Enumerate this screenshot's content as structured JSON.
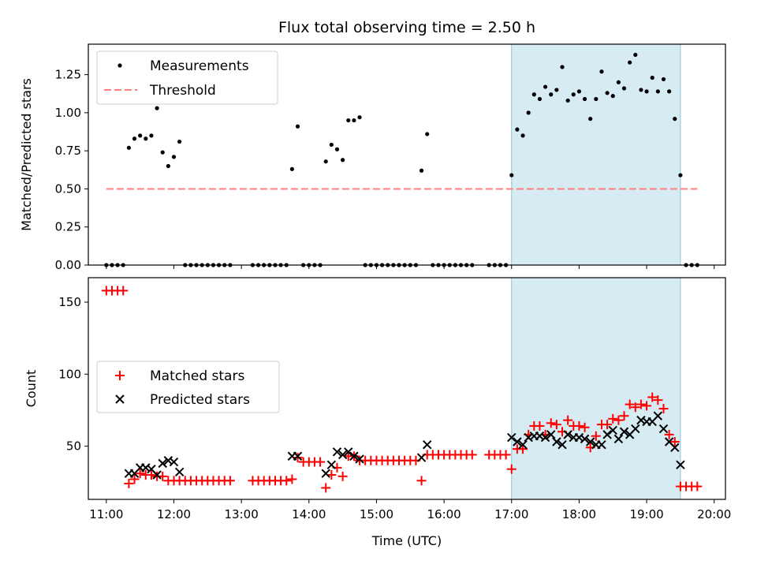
{
  "chart_data": {
    "title": "Flux total observing time = 2.50 h",
    "xlabel": "Time (UTC)",
    "x_ticks": [
      "11:00",
      "12:00",
      "13:00",
      "14:00",
      "15:00",
      "16:00",
      "17:00",
      "18:00",
      "19:00",
      "20:00"
    ],
    "xlim": [
      "10:44",
      "20:10"
    ],
    "highlight": {
      "start": "17:00",
      "end": "19:30",
      "color": "#add8e6"
    },
    "top": {
      "type": "scatter",
      "ylabel": "Matched/Predicted stars",
      "ylim": [
        0,
        1.45
      ],
      "y_ticks": [
        "0.00",
        "0.25",
        "0.50",
        "0.75",
        "1.00",
        "1.25"
      ],
      "legend_position": "top-left",
      "series": [
        {
          "name": "Measurements",
          "marker": "dot",
          "color": "#000000",
          "points": [
            [
              "11:00",
              0
            ],
            [
              "11:05",
              0
            ],
            [
              "11:10",
              0
            ],
            [
              "11:15",
              0
            ],
            [
              "11:20",
              0.77
            ],
            [
              "11:25",
              0.83
            ],
            [
              "11:30",
              0.85
            ],
            [
              "11:35",
              0.83
            ],
            [
              "11:40",
              0.85
            ],
            [
              "11:45",
              1.03
            ],
            [
              "11:50",
              0.74
            ],
            [
              "11:55",
              0.65
            ],
            [
              "12:00",
              0.71
            ],
            [
              "12:05",
              0.81
            ],
            [
              "12:10",
              0
            ],
            [
              "12:15",
              0
            ],
            [
              "12:20",
              0
            ],
            [
              "12:25",
              0
            ],
            [
              "12:30",
              0
            ],
            [
              "12:35",
              0
            ],
            [
              "12:40",
              0
            ],
            [
              "12:45",
              0
            ],
            [
              "12:50",
              0
            ],
            [
              "13:10",
              0
            ],
            [
              "13:15",
              0
            ],
            [
              "13:20",
              0
            ],
            [
              "13:25",
              0
            ],
            [
              "13:30",
              0
            ],
            [
              "13:35",
              0
            ],
            [
              "13:40",
              0
            ],
            [
              "13:45",
              0.63
            ],
            [
              "13:50",
              0.91
            ],
            [
              "13:55",
              0
            ],
            [
              "14:00",
              0
            ],
            [
              "14:05",
              0
            ],
            [
              "14:10",
              0
            ],
            [
              "14:15",
              0.68
            ],
            [
              "14:20",
              0.79
            ],
            [
              "14:25",
              0.76
            ],
            [
              "14:30",
              0.69
            ],
            [
              "14:35",
              0.95
            ],
            [
              "14:40",
              0.95
            ],
            [
              "14:45",
              0.97
            ],
            [
              "14:50",
              0
            ],
            [
              "14:55",
              0
            ],
            [
              "15:00",
              0
            ],
            [
              "15:05",
              0
            ],
            [
              "15:10",
              0
            ],
            [
              "15:15",
              0
            ],
            [
              "15:20",
              0
            ],
            [
              "15:25",
              0
            ],
            [
              "15:30",
              0
            ],
            [
              "15:35",
              0
            ],
            [
              "15:40",
              0.62
            ],
            [
              "15:45",
              0.86
            ],
            [
              "15:50",
              0
            ],
            [
              "15:55",
              0
            ],
            [
              "16:00",
              0
            ],
            [
              "16:05",
              0
            ],
            [
              "16:10",
              0
            ],
            [
              "16:15",
              0
            ],
            [
              "16:20",
              0
            ],
            [
              "16:25",
              0
            ],
            [
              "16:40",
              0
            ],
            [
              "16:45",
              0
            ],
            [
              "16:50",
              0
            ],
            [
              "16:55",
              0
            ],
            [
              "17:00",
              0.59
            ],
            [
              "17:05",
              0.89
            ],
            [
              "17:10",
              0.85
            ],
            [
              "17:15",
              1.0
            ],
            [
              "17:20",
              1.12
            ],
            [
              "17:25",
              1.09
            ],
            [
              "17:30",
              1.17
            ],
            [
              "17:35",
              1.12
            ],
            [
              "17:40",
              1.15
            ],
            [
              "17:45",
              1.3
            ],
            [
              "17:50",
              1.08
            ],
            [
              "17:55",
              1.12
            ],
            [
              "18:00",
              1.14
            ],
            [
              "18:05",
              1.09
            ],
            [
              "18:10",
              0.96
            ],
            [
              "18:15",
              1.09
            ],
            [
              "18:20",
              1.27
            ],
            [
              "18:25",
              1.13
            ],
            [
              "18:30",
              1.11
            ],
            [
              "18:35",
              1.2
            ],
            [
              "18:40",
              1.16
            ],
            [
              "18:45",
              1.33
            ],
            [
              "18:50",
              1.38
            ],
            [
              "18:55",
              1.15
            ],
            [
              "19:00",
              1.14
            ],
            [
              "19:05",
              1.23
            ],
            [
              "19:10",
              1.14
            ],
            [
              "19:15",
              1.22
            ],
            [
              "19:20",
              1.14
            ],
            [
              "19:25",
              0.96
            ],
            [
              "19:30",
              0.59
            ],
            [
              "19:35",
              0
            ],
            [
              "19:40",
              0
            ],
            [
              "19:45",
              0
            ]
          ]
        },
        {
          "name": "Threshold",
          "marker": "dashed-line",
          "color": "#ff7f7f",
          "points": [
            [
              "11:00",
              0.5
            ],
            [
              "19:45",
              0.5
            ]
          ]
        }
      ]
    },
    "bottom": {
      "type": "scatter",
      "ylabel": "Count",
      "ylim": [
        13,
        167
      ],
      "y_ticks": [
        "50",
        "100",
        "150"
      ],
      "legend_position": "center-left",
      "series": [
        {
          "name": "Matched stars",
          "marker": "plus",
          "color": "#ff0000",
          "points": [
            [
              "11:00",
              158
            ],
            [
              "11:05",
              158
            ],
            [
              "11:10",
              158
            ],
            [
              "11:15",
              158
            ],
            [
              "11:20",
              24
            ],
            [
              "11:25",
              27
            ],
            [
              "11:30",
              31
            ],
            [
              "11:35",
              30
            ],
            [
              "11:40",
              30
            ],
            [
              "11:45",
              29
            ],
            [
              "11:50",
              29
            ],
            [
              "11:55",
              26
            ],
            [
              "12:00",
              26
            ],
            [
              "12:05",
              26
            ],
            [
              "12:10",
              26
            ],
            [
              "12:15",
              26
            ],
            [
              "12:20",
              26
            ],
            [
              "12:25",
              26
            ],
            [
              "12:30",
              26
            ],
            [
              "12:35",
              26
            ],
            [
              "12:40",
              26
            ],
            [
              "12:45",
              26
            ],
            [
              "12:50",
              26
            ],
            [
              "13:10",
              26
            ],
            [
              "13:15",
              26
            ],
            [
              "13:20",
              26
            ],
            [
              "13:25",
              26
            ],
            [
              "13:30",
              26
            ],
            [
              "13:35",
              26
            ],
            [
              "13:40",
              26
            ],
            [
              "13:45",
              27
            ],
            [
              "13:50",
              42
            ],
            [
              "13:55",
              39
            ],
            [
              "14:00",
              39
            ],
            [
              "14:05",
              39
            ],
            [
              "14:10",
              39
            ],
            [
              "14:15",
              21
            ],
            [
              "14:20",
              30
            ],
            [
              "14:25",
              35
            ],
            [
              "14:30",
              29
            ],
            [
              "14:35",
              43
            ],
            [
              "14:40",
              43
            ],
            [
              "14:45",
              40
            ],
            [
              "14:50",
              40
            ],
            [
              "14:55",
              40
            ],
            [
              "15:00",
              40
            ],
            [
              "15:05",
              40
            ],
            [
              "15:10",
              40
            ],
            [
              "15:15",
              40
            ],
            [
              "15:20",
              40
            ],
            [
              "15:25",
              40
            ],
            [
              "15:30",
              40
            ],
            [
              "15:35",
              40
            ],
            [
              "15:40",
              26
            ],
            [
              "15:45",
              44
            ],
            [
              "15:50",
              44
            ],
            [
              "15:55",
              44
            ],
            [
              "16:00",
              44
            ],
            [
              "16:05",
              44
            ],
            [
              "16:10",
              44
            ],
            [
              "16:15",
              44
            ],
            [
              "16:20",
              44
            ],
            [
              "16:25",
              44
            ],
            [
              "16:40",
              44
            ],
            [
              "16:45",
              44
            ],
            [
              "16:50",
              44
            ],
            [
              "16:55",
              44
            ],
            [
              "17:00",
              34
            ],
            [
              "17:05",
              48
            ],
            [
              "17:10",
              48
            ],
            [
              "17:15",
              58
            ],
            [
              "17:20",
              64
            ],
            [
              "17:25",
              64
            ],
            [
              "17:30",
              58
            ],
            [
              "17:35",
              66
            ],
            [
              "17:40",
              65
            ],
            [
              "17:45",
              60
            ],
            [
              "17:50",
              68
            ],
            [
              "17:55",
              64
            ],
            [
              "18:00",
              64
            ],
            [
              "18:05",
              63
            ],
            [
              "18:10",
              49
            ],
            [
              "18:15",
              57
            ],
            [
              "18:20",
              65
            ],
            [
              "18:25",
              65
            ],
            [
              "18:30",
              69
            ],
            [
              "18:35",
              68
            ],
            [
              "18:40",
              71
            ],
            [
              "18:45",
              79
            ],
            [
              "18:50",
              77
            ],
            [
              "18:55",
              79
            ],
            [
              "19:00",
              78
            ],
            [
              "19:05",
              84
            ],
            [
              "19:10",
              82
            ],
            [
              "19:15",
              76
            ],
            [
              "19:20",
              58
            ],
            [
              "19:25",
              53
            ],
            [
              "19:30",
              22
            ],
            [
              "19:35",
              22
            ],
            [
              "19:40",
              22
            ],
            [
              "19:45",
              22
            ]
          ]
        },
        {
          "name": "Predicted stars",
          "marker": "x",
          "color": "#000000",
          "points": [
            [
              "11:20",
              31
            ],
            [
              "11:25",
              31
            ],
            [
              "11:30",
              35
            ],
            [
              "11:35",
              35
            ],
            [
              "11:40",
              34
            ],
            [
              "11:45",
              30
            ],
            [
              "11:50",
              38
            ],
            [
              "11:55",
              40
            ],
            [
              "12:00",
              39
            ],
            [
              "12:05",
              32
            ],
            [
              "13:45",
              43
            ],
            [
              "13:50",
              43
            ],
            [
              "14:15",
              31
            ],
            [
              "14:20",
              37
            ],
            [
              "14:25",
              46
            ],
            [
              "14:30",
              44
            ],
            [
              "14:35",
              46
            ],
            [
              "14:40",
              43
            ],
            [
              "14:45",
              41
            ],
            [
              "15:40",
              42
            ],
            [
              "15:45",
              51
            ],
            [
              "17:00",
              56
            ],
            [
              "17:05",
              53
            ],
            [
              "17:10",
              51
            ],
            [
              "17:15",
              56
            ],
            [
              "17:20",
              57
            ],
            [
              "17:25",
              57
            ],
            [
              "17:30",
              56
            ],
            [
              "17:35",
              58
            ],
            [
              "17:40",
              53
            ],
            [
              "17:45",
              51
            ],
            [
              "17:50",
              58
            ],
            [
              "17:55",
              56
            ],
            [
              "18:00",
              56
            ],
            [
              "18:05",
              55
            ],
            [
              "18:10",
              53
            ],
            [
              "18:15",
              51
            ],
            [
              "18:20",
              51
            ],
            [
              "18:25",
              58
            ],
            [
              "18:30",
              61
            ],
            [
              "18:35",
              55
            ],
            [
              "18:40",
              60
            ],
            [
              "18:45",
              58
            ],
            [
              "18:50",
              62
            ],
            [
              "18:55",
              68
            ],
            [
              "19:00",
              67
            ],
            [
              "19:05",
              67
            ],
            [
              "19:10",
              71
            ],
            [
              "19:15",
              62
            ],
            [
              "19:20",
              53
            ],
            [
              "19:25",
              49
            ],
            [
              "19:30",
              37
            ]
          ]
        }
      ]
    }
  }
}
